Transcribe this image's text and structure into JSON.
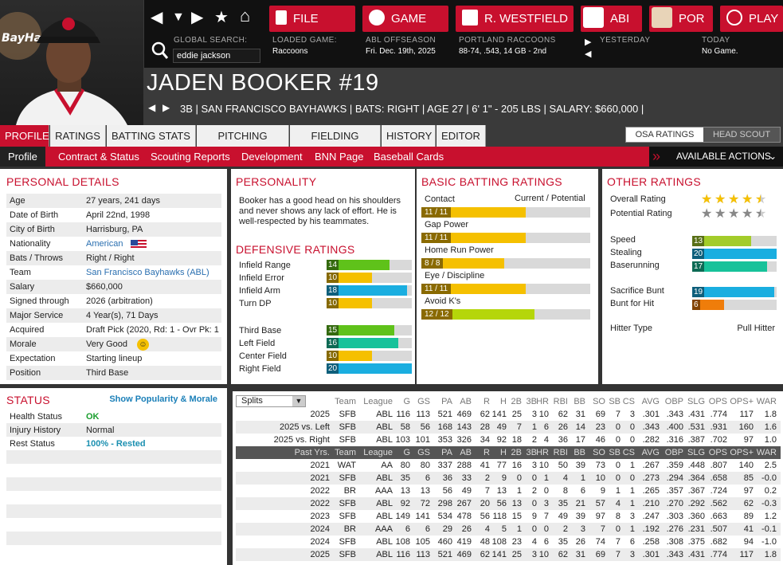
{
  "nav": {
    "back": "◀",
    "down": "▼",
    "forward": "▶",
    "star": "★",
    "home": "⌂"
  },
  "top_buttons": [
    {
      "label": "FILE",
      "color": "#c8102e"
    },
    {
      "label": "GAME"
    },
    {
      "label": "R. WESTFIELD"
    },
    {
      "label": "ABI"
    },
    {
      "label": "POR"
    },
    {
      "label": "PLAY"
    }
  ],
  "search": {
    "label": "GLOBAL SEARCH:",
    "value": "eddie jackson"
  },
  "info": {
    "loaded_game_label": "LOADED GAME:",
    "loaded_game": "Raccoons",
    "offseason_label": "ABL OFFSEASON",
    "date": "Fri. Dec. 19th, 2025",
    "team_label": "PORTLAND RACCOONS",
    "team_record": "88-74, .543, 14 GB - 2nd",
    "yesterday_label": "YESTERDAY",
    "today_label": "TODAY",
    "today": "No Game."
  },
  "player": {
    "name": "JADEN BOOKER  #19",
    "subtitle": "3B | SAN FRANCISCO BAYHAWKS  |  BATS: RIGHT  |  AGE 27  |  6' 1\" - 205 LBS  |  SALARY: $660,000  |"
  },
  "tabs": [
    "PROFILE",
    "RATINGS",
    "BATTING STATS",
    "PITCHING STATS",
    "FIELDING STATS",
    "HISTORY",
    "EDITOR"
  ],
  "toggle": {
    "left": "OSA RATINGS",
    "right": "HEAD SCOUT"
  },
  "subnav": [
    "Profile",
    "Contract & Status",
    "Scouting Reports",
    "Development",
    "BNN Page",
    "Baseball Cards"
  ],
  "available_actions": "AVAILABLE ACTIONS",
  "personal": {
    "title": "PERSONAL DETAILS",
    "rows": [
      {
        "k": "Age",
        "v": "27 years, 241 days"
      },
      {
        "k": "Date of Birth",
        "v": "April 22nd, 1998"
      },
      {
        "k": "City of Birth",
        "v": "Harrisburg, PA"
      },
      {
        "k": "Nationality",
        "v": "American"
      },
      {
        "k": "Bats / Throws",
        "v": "Right / Right"
      },
      {
        "k": "Team",
        "v": "San Francisco Bayhawks (ABL)"
      },
      {
        "k": "Salary",
        "v": "$660,000"
      },
      {
        "k": "Signed through",
        "v": "2026 (arbitration)"
      },
      {
        "k": "Major Service",
        "v": "4 Year(s), 71 Days"
      },
      {
        "k": "Acquired",
        "v": "Draft Pick (2020, Rd: 1 - Ovr Pk: 1"
      },
      {
        "k": "Morale",
        "v": "Very Good"
      },
      {
        "k": "Expectation",
        "v": "Starting lineup"
      },
      {
        "k": "Position",
        "v": "Third Base"
      }
    ]
  },
  "personality": {
    "title": "PERSONALITY",
    "text": "Booker has a good head on his shoulders and never shows any lack of effort. He is well-respected by his teammates."
  },
  "defensive": {
    "title": "DEFENSIVE RATINGS",
    "rows": [
      {
        "k": "Infield Range",
        "v": "14",
        "pct": 0.74,
        "color": "#5fc21a"
      },
      {
        "k": "Infield Error",
        "v": "10",
        "pct": 0.53,
        "color": "#f5c000"
      },
      {
        "k": "Infield Arm",
        "v": "18",
        "pct": 0.94,
        "color": "#1aaee0"
      },
      {
        "k": "Turn DP",
        "v": "10",
        "pct": 0.53,
        "color": "#f5c000"
      },
      {
        "k": "Third Base",
        "v": "15",
        "pct": 0.79,
        "color": "#5fc21a"
      },
      {
        "k": "Left Field",
        "v": "16",
        "pct": 0.84,
        "color": "#17c29a"
      },
      {
        "k": "Center Field",
        "v": "10",
        "pct": 0.53,
        "color": "#f5c000"
      },
      {
        "k": "Right Field",
        "v": "20",
        "pct": 1.0,
        "color": "#1aaee0"
      }
    ]
  },
  "batting": {
    "title": "BASIC BATTING RATINGS",
    "header_left": "Contact",
    "header_right": "Current / Potential",
    "rows": [
      {
        "k": "Contact",
        "v": "11 / 11",
        "pct": 0.62,
        "color": "#f5c000"
      },
      {
        "k": "Gap Power",
        "v": "11 / 11",
        "pct": 0.62,
        "color": "#f5c000"
      },
      {
        "k": "Home Run Power",
        "v": "8 / 8",
        "pct": 0.49,
        "color": "#f5c000"
      },
      {
        "k": "Eye / Discipline",
        "v": "11 / 11",
        "pct": 0.62,
        "color": "#f5c000"
      },
      {
        "k": "Avoid K's",
        "v": "12 / 12",
        "pct": 0.67,
        "color": "#b5d60a"
      }
    ]
  },
  "other": {
    "title": "OTHER RATINGS",
    "overall_label": "Overall Rating",
    "overall_stars": 4.5,
    "potential_label": "Potential Rating",
    "potential_stars": 4.5,
    "rows": [
      {
        "k": "Speed",
        "v": "13",
        "pct": 0.7,
        "color": "#a3cc2a"
      },
      {
        "k": "Stealing",
        "v": "20",
        "pct": 1.0,
        "color": "#1aaee0"
      },
      {
        "k": "Baserunning",
        "v": "17",
        "pct": 0.89,
        "color": "#17c29a"
      },
      {
        "k": "Sacrifice Bunt",
        "v": "19",
        "pct": 0.97,
        "color": "#1aaee0"
      },
      {
        "k": "Bunt for Hit",
        "v": "6",
        "pct": 0.38,
        "color": "#ef7d0a"
      }
    ],
    "hitter_type_label": "Hitter Type",
    "hitter_type": "Pull Hitter"
  },
  "status": {
    "title": "STATUS",
    "link": "Show Popularity & Morale",
    "rows": [
      {
        "k": "Health Status",
        "v": "OK",
        "color": "#1a9e2e"
      },
      {
        "k": "Injury History",
        "v": "Normal",
        "color": "#222"
      },
      {
        "k": "Rest Status",
        "v": "100% - Rested",
        "color": "#1a8fb0"
      }
    ]
  },
  "stats": {
    "splits_label": "Splits",
    "columns": [
      "Team",
      "League",
      "G",
      "GS",
      "PA",
      "AB",
      "R",
      "H",
      "2B",
      "3B",
      "HR",
      "RBI",
      "BB",
      "SO",
      "SB",
      "CS",
      "AVG",
      "OBP",
      "SLG",
      "OPS",
      "OPS+",
      "WAR"
    ],
    "current": [
      [
        "2025",
        "SFB",
        "ABL",
        "116",
        "113",
        "521",
        "469",
        "62",
        "141",
        "25",
        "3",
        "10",
        "62",
        "31",
        "69",
        "7",
        "3",
        ".301",
        ".343",
        ".431",
        ".774",
        "117",
        "1.8"
      ],
      [
        "2025 vs. Left",
        "SFB",
        "ABL",
        "58",
        "56",
        "168",
        "143",
        "28",
        "49",
        "7",
        "1",
        "6",
        "26",
        "14",
        "23",
        "0",
        "0",
        ".343",
        ".400",
        ".531",
        ".931",
        "160",
        "1.6"
      ],
      [
        "2025 vs. Right",
        "SFB",
        "ABL",
        "103",
        "101",
        "353",
        "326",
        "34",
        "92",
        "18",
        "2",
        "4",
        "36",
        "17",
        "46",
        "0",
        "0",
        ".282",
        ".316",
        ".387",
        ".702",
        "97",
        "1.0"
      ]
    ],
    "past_label": "Past Yrs.",
    "past": [
      [
        "2021",
        "WAT",
        "AA",
        "80",
        "80",
        "337",
        "288",
        "41",
        "77",
        "16",
        "3",
        "10",
        "50",
        "39",
        "73",
        "0",
        "1",
        ".267",
        ".359",
        ".448",
        ".807",
        "140",
        "2.5"
      ],
      [
        "2021",
        "SFB",
        "ABL",
        "35",
        "6",
        "36",
        "33",
        "2",
        "9",
        "0",
        "0",
        "1",
        "4",
        "1",
        "10",
        "0",
        "0",
        ".273",
        ".294",
        ".364",
        ".658",
        "85",
        "-0.0"
      ],
      [
        "2022",
        "BR",
        "AAA",
        "13",
        "13",
        "56",
        "49",
        "7",
        "13",
        "1",
        "2",
        "0",
        "8",
        "6",
        "9",
        "1",
        "1",
        ".265",
        ".357",
        ".367",
        ".724",
        "97",
        "0.2"
      ],
      [
        "2022",
        "SFB",
        "ABL",
        "92",
        "72",
        "298",
        "267",
        "20",
        "56",
        "13",
        "0",
        "3",
        "35",
        "21",
        "57",
        "4",
        "1",
        ".210",
        ".270",
        ".292",
        ".562",
        "62",
        "-0.3"
      ],
      [
        "2023",
        "SFB",
        "ABL",
        "149",
        "141",
        "534",
        "478",
        "56",
        "118",
        "15",
        "9",
        "7",
        "49",
        "39",
        "97",
        "8",
        "3",
        ".247",
        ".303",
        ".360",
        ".663",
        "89",
        "1.2"
      ],
      [
        "2024",
        "BR",
        "AAA",
        "6",
        "6",
        "29",
        "26",
        "4",
        "5",
        "1",
        "0",
        "0",
        "2",
        "3",
        "7",
        "0",
        "1",
        ".192",
        ".276",
        ".231",
        ".507",
        "41",
        "-0.1"
      ],
      [
        "2024",
        "SFB",
        "ABL",
        "108",
        "105",
        "460",
        "419",
        "48",
        "108",
        "23",
        "4",
        "6",
        "35",
        "26",
        "74",
        "7",
        "6",
        ".258",
        ".308",
        ".375",
        ".682",
        "94",
        "-1.0"
      ],
      [
        "2025",
        "SFB",
        "ABL",
        "116",
        "113",
        "521",
        "469",
        "62",
        "141",
        "25",
        "3",
        "10",
        "62",
        "31",
        "69",
        "7",
        "3",
        ".301",
        ".343",
        ".431",
        ".774",
        "117",
        "1.8"
      ]
    ]
  }
}
